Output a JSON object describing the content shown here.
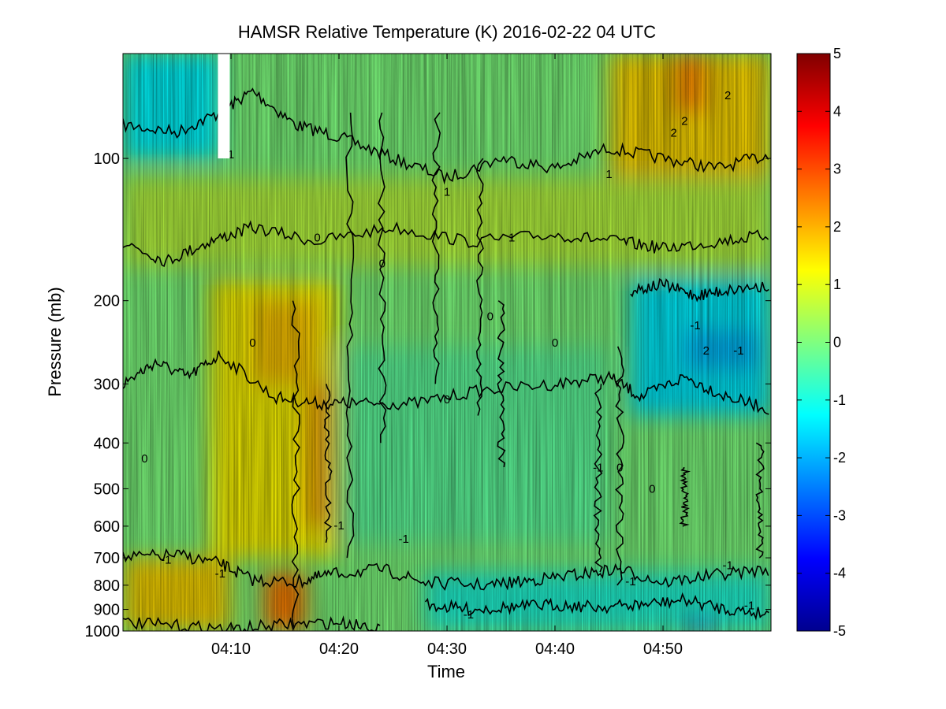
{
  "chart_data": {
    "type": "heatmap",
    "title": "HAMSR  Relative Temperature (K) 2016-02-22 04 UTC",
    "xlabel": "Time",
    "ylabel": "Pressure (mb)",
    "x_ticks": [
      "04:10",
      "04:20",
      "04:30",
      "04:40",
      "04:50"
    ],
    "x_tick_minutes": [
      10,
      20,
      30,
      40,
      50
    ],
    "x_range_minutes": [
      0,
      60
    ],
    "y_scale": "log",
    "y_reversed": true,
    "y_range": [
      1000,
      60
    ],
    "y_ticks": [
      100,
      200,
      300,
      400,
      500,
      600,
      700,
      800,
      900,
      1000
    ],
    "colorbar": {
      "colormap": "jet",
      "range": [
        -5,
        5
      ],
      "ticks": [
        5,
        4,
        3,
        2,
        1,
        0,
        -1,
        -2,
        -3,
        -4,
        -5
      ]
    },
    "contour_levels": [
      -1,
      0,
      1,
      2
    ],
    "contour_labels": [
      "2",
      "2",
      "2",
      "2",
      "1",
      "1",
      "1",
      "1",
      "0",
      "0",
      "0",
      "0",
      "0",
      "0",
      "0",
      "0",
      "0",
      "-1",
      "-1",
      "-1",
      "-1",
      "-1",
      "-1",
      "-1",
      "-1",
      "-1",
      "-1",
      "-1"
    ],
    "missing_data_gap": {
      "time_minutes": 9.3,
      "pressure_range": [
        60,
        100
      ]
    },
    "field_regions": [
      {
        "time": [
          0,
          9
        ],
        "pressure": [
          60,
          100
        ],
        "value": -1.3
      },
      {
        "time": [
          45,
          60
        ],
        "pressure": [
          60,
          110
        ],
        "value": 1.6
      },
      {
        "time": [
          51,
          54
        ],
        "pressure": [
          60,
          80
        ],
        "value": 2.4
      },
      {
        "time": [
          0,
          60
        ],
        "pressure": [
          110,
          170
        ],
        "value": 0.6
      },
      {
        "time": [
          8,
          20
        ],
        "pressure": [
          180,
          700
        ],
        "value": 1.3
      },
      {
        "time": [
          12,
          18
        ],
        "pressure": [
          200,
          300
        ],
        "value": 1.8
      },
      {
        "time": [
          17,
          19
        ],
        "pressure": [
          300,
          600
        ],
        "value": 2.2
      },
      {
        "time": [
          47,
          60
        ],
        "pressure": [
          180,
          350
        ],
        "value": -1.4
      },
      {
        "time": [
          52,
          59
        ],
        "pressure": [
          230,
          280
        ],
        "value": -1.9
      },
      {
        "time": [
          20,
          45
        ],
        "pressure": [
          250,
          650
        ],
        "value": -0.3
      },
      {
        "time": [
          0,
          10
        ],
        "pressure": [
          700,
          1000
        ],
        "value": 1.6
      },
      {
        "time": [
          13,
          17
        ],
        "pressure": [
          750,
          1000
        ],
        "value": 2.5
      },
      {
        "time": [
          28,
          60
        ],
        "pressure": [
          750,
          1000
        ],
        "value": -0.9
      },
      {
        "time": [
          52,
          55
        ],
        "pressure": [
          950,
          1000
        ],
        "value": -2.5
      }
    ]
  }
}
